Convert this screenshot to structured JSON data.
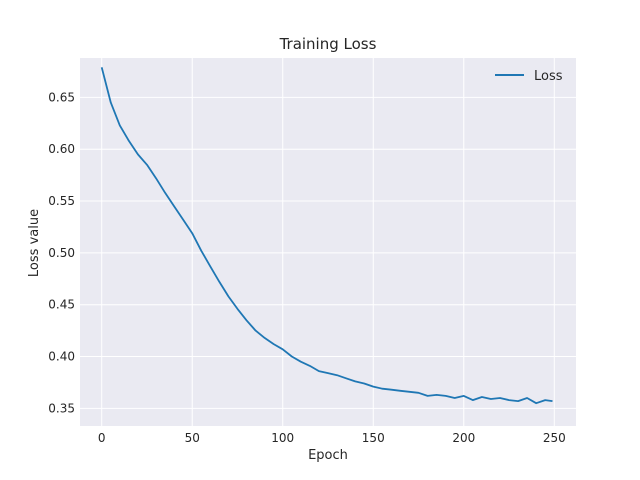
{
  "chart_data": {
    "type": "line",
    "title": "Training Loss",
    "xlabel": "Epoch",
    "ylabel": "Loss value",
    "xlim": [
      -12,
      262
    ],
    "ylim": [
      0.333,
      0.688
    ],
    "xticks": [
      0,
      50,
      100,
      150,
      200,
      250
    ],
    "yticks": [
      0.35,
      0.4,
      0.45,
      0.5,
      0.55,
      0.6,
      0.65
    ],
    "ytick_labels": [
      "0.35",
      "0.40",
      "0.45",
      "0.50",
      "0.55",
      "0.60",
      "0.65"
    ],
    "grid": true,
    "legend_position": "top-right",
    "style": {
      "plot_background": "#eaeaf2",
      "grid_color": "#ffffff",
      "line_color": "#1f77b4"
    },
    "series": [
      {
        "name": "Loss",
        "x": [
          0,
          5,
          10,
          15,
          20,
          25,
          30,
          35,
          40,
          45,
          50,
          55,
          60,
          65,
          70,
          75,
          80,
          85,
          90,
          95,
          100,
          105,
          110,
          115,
          120,
          125,
          130,
          135,
          140,
          145,
          150,
          155,
          160,
          165,
          170,
          175,
          180,
          185,
          190,
          195,
          200,
          205,
          210,
          215,
          220,
          225,
          230,
          235,
          240,
          245,
          249
        ],
        "y": [
          0.679,
          0.645,
          0.623,
          0.608,
          0.595,
          0.585,
          0.572,
          0.558,
          0.545,
          0.532,
          0.519,
          0.502,
          0.487,
          0.472,
          0.458,
          0.446,
          0.435,
          0.425,
          0.418,
          0.412,
          0.407,
          0.4,
          0.395,
          0.391,
          0.386,
          0.384,
          0.382,
          0.379,
          0.376,
          0.374,
          0.371,
          0.369,
          0.368,
          0.367,
          0.366,
          0.365,
          0.362,
          0.363,
          0.362,
          0.36,
          0.362,
          0.358,
          0.361,
          0.359,
          0.36,
          0.358,
          0.357,
          0.36,
          0.355,
          0.358,
          0.357
        ]
      }
    ]
  }
}
